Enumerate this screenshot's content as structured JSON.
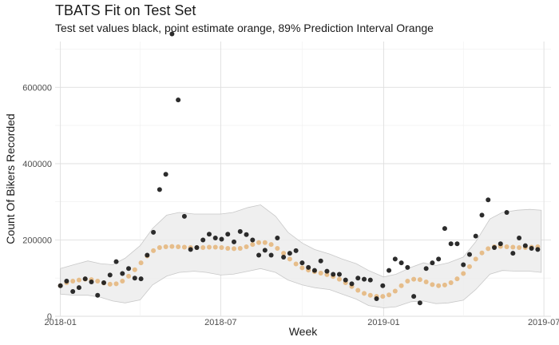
{
  "chart_data": {
    "type": "scatter",
    "title": "TBATS Fit on Test Set",
    "subtitle": "Test set values black, point estimate orange, 89% Prediction Interval Orange",
    "xlabel": "Week",
    "ylabel": "Count Of Bikers Recorded",
    "xlim": [
      "2017-12-26",
      "2019-07-09"
    ],
    "ylim": [
      0,
      720000
    ],
    "x_ticks": [
      {
        "date": "2018-01-01",
        "label": "2018-01"
      },
      {
        "date": "2018-07-01",
        "label": "2018-07"
      },
      {
        "date": "2019-01-01",
        "label": "2019-01"
      },
      {
        "date": "2019-07-01",
        "label": "2019-07"
      }
    ],
    "y_ticks": [
      {
        "value": 0,
        "label": "0"
      },
      {
        "value": 200000,
        "label": "200000"
      },
      {
        "value": 400000,
        "label": "400000"
      },
      {
        "value": 600000,
        "label": "600000"
      }
    ],
    "colors": {
      "observed": "#1a1a1a",
      "forecast": "#e6bd8a",
      "interval_fill": "#ececec",
      "interval_stroke": "#c8c8c8"
    },
    "series": [
      {
        "name": "Test set values",
        "x": [
          "2018-01-01",
          "2018-01-08",
          "2018-01-15",
          "2018-01-22",
          "2018-01-29",
          "2018-02-05",
          "2018-02-12",
          "2018-02-19",
          "2018-02-26",
          "2018-03-05",
          "2018-03-12",
          "2018-03-19",
          "2018-03-26",
          "2018-04-02",
          "2018-04-09",
          "2018-04-16",
          "2018-04-23",
          "2018-04-30",
          "2018-05-07",
          "2018-05-14",
          "2018-05-21",
          "2018-05-28",
          "2018-06-04",
          "2018-06-11",
          "2018-06-18",
          "2018-06-25",
          "2018-07-02",
          "2018-07-09",
          "2018-07-16",
          "2018-07-23",
          "2018-07-30",
          "2018-08-06",
          "2018-08-13",
          "2018-08-20",
          "2018-08-27",
          "2018-09-03",
          "2018-09-10",
          "2018-09-17",
          "2018-09-24",
          "2018-10-01",
          "2018-10-08",
          "2018-10-15",
          "2018-10-22",
          "2018-10-29",
          "2018-11-05",
          "2018-11-12",
          "2018-11-19",
          "2018-11-26",
          "2018-12-03",
          "2018-12-10",
          "2018-12-17",
          "2018-12-24",
          "2018-12-31",
          "2019-01-07",
          "2019-01-14",
          "2019-01-21",
          "2019-01-28",
          "2019-02-04",
          "2019-02-11",
          "2019-02-18",
          "2019-02-25",
          "2019-03-04",
          "2019-03-11",
          "2019-03-18",
          "2019-03-25",
          "2019-04-01",
          "2019-04-08",
          "2019-04-15",
          "2019-04-22",
          "2019-04-29",
          "2019-05-06",
          "2019-05-13",
          "2019-05-20",
          "2019-05-27",
          "2019-06-03",
          "2019-06-10",
          "2019-06-17",
          "2019-06-24"
        ],
        "values": [
          80000,
          92000,
          65000,
          75000,
          98000,
          90000,
          55000,
          88000,
          108000,
          143000,
          112000,
          125000,
          100000,
          98000,
          160000,
          220000,
          332000,
          372000,
          740000,
          567000,
          262000,
          175000,
          180000,
          200000,
          215000,
          205000,
          202000,
          215000,
          195000,
          222000,
          214000,
          200000,
          160000,
          173000,
          160000,
          205000,
          155000,
          165000,
          172000,
          140000,
          128000,
          120000,
          145000,
          118000,
          110000,
          110000,
          95000,
          85000,
          100000,
          97000,
          95000,
          46000,
          80000,
          120000,
          150000,
          140000,
          128000,
          52000,
          35000,
          125000,
          140000,
          150000,
          230000,
          190000,
          190000,
          135000,
          162000,
          210000,
          265000,
          305000,
          180000,
          190000,
          272000,
          165000,
          205000,
          185000,
          178000,
          175000
        ]
      },
      {
        "name": "Point estimate",
        "x": [
          "2018-01-01",
          "2018-01-08",
          "2018-01-15",
          "2018-01-22",
          "2018-01-29",
          "2018-02-05",
          "2018-02-12",
          "2018-02-19",
          "2018-02-26",
          "2018-03-05",
          "2018-03-12",
          "2018-03-19",
          "2018-03-26",
          "2018-04-02",
          "2018-04-09",
          "2018-04-16",
          "2018-04-23",
          "2018-04-30",
          "2018-05-07",
          "2018-05-14",
          "2018-05-21",
          "2018-05-28",
          "2018-06-04",
          "2018-06-11",
          "2018-06-18",
          "2018-06-25",
          "2018-07-02",
          "2018-07-09",
          "2018-07-16",
          "2018-07-23",
          "2018-07-30",
          "2018-08-06",
          "2018-08-13",
          "2018-08-20",
          "2018-08-27",
          "2018-09-03",
          "2018-09-10",
          "2018-09-17",
          "2018-09-24",
          "2018-10-01",
          "2018-10-08",
          "2018-10-15",
          "2018-10-22",
          "2018-10-29",
          "2018-11-05",
          "2018-11-12",
          "2018-11-19",
          "2018-11-26",
          "2018-12-03",
          "2018-12-10",
          "2018-12-17",
          "2018-12-24",
          "2018-12-31",
          "2019-01-07",
          "2019-01-14",
          "2019-01-21",
          "2019-01-28",
          "2019-02-04",
          "2019-02-11",
          "2019-02-18",
          "2019-02-25",
          "2019-03-04",
          "2019-03-11",
          "2019-03-18",
          "2019-03-25",
          "2019-04-01",
          "2019-04-08",
          "2019-04-15",
          "2019-04-22",
          "2019-04-29",
          "2019-05-06",
          "2019-05-13",
          "2019-05-20",
          "2019-05-27",
          "2019-06-03",
          "2019-06-10",
          "2019-06-17",
          "2019-06-24"
        ],
        "values": [
          80000,
          88000,
          92000,
          95000,
          97000,
          96000,
          92000,
          87000,
          84000,
          85000,
          92000,
          105000,
          122000,
          140000,
          158000,
          172000,
          180000,
          182000,
          183000,
          182000,
          181000,
          180000,
          180000,
          180000,
          181000,
          181000,
          180000,
          178000,
          177000,
          178000,
          182000,
          188000,
          193000,
          193000,
          188000,
          178000,
          165000,
          150000,
          137000,
          127000,
          121000,
          117000,
          113000,
          109000,
          104000,
          97000,
          88000,
          78000,
          68000,
          60000,
          55000,
          52000,
          52000,
          56000,
          66000,
          80000,
          92000,
          97000,
          96000,
          90000,
          83000,
          80000,
          82000,
          88000,
          98000,
          112000,
          130000,
          150000,
          166000,
          177000,
          182000,
          183000,
          182000,
          181000,
          180000,
          180000,
          181000,
          182000
        ]
      }
    ],
    "interval_89": {
      "x": [
        "2018-01-01",
        "2018-01-16",
        "2018-02-01",
        "2018-02-15",
        "2018-03-01",
        "2018-03-15",
        "2018-04-01",
        "2018-04-15",
        "2018-05-01",
        "2018-05-15",
        "2018-06-01",
        "2018-06-15",
        "2018-07-01",
        "2018-07-15",
        "2018-08-01",
        "2018-08-15",
        "2018-09-01",
        "2018-09-15",
        "2018-10-01",
        "2018-10-15",
        "2018-11-01",
        "2018-11-15",
        "2018-12-01",
        "2018-12-15",
        "2019-01-01",
        "2019-01-15",
        "2019-02-01",
        "2019-02-15",
        "2019-03-01",
        "2019-03-15",
        "2019-04-01",
        "2019-04-15",
        "2019-05-01",
        "2019-05-15",
        "2019-06-01",
        "2019-06-15",
        "2019-06-28"
      ],
      "upper": [
        125000,
        135000,
        145000,
        138000,
        135000,
        152000,
        185000,
        230000,
        265000,
        272000,
        268000,
        268000,
        268000,
        272000,
        285000,
        292000,
        262000,
        220000,
        192000,
        175000,
        163000,
        150000,
        138000,
        120000,
        103000,
        110000,
        128000,
        140000,
        133000,
        140000,
        155000,
        195000,
        255000,
        272000,
        278000,
        280000,
        278000
      ],
      "lower": [
        58000,
        55000,
        55000,
        50000,
        40000,
        35000,
        43000,
        82000,
        105000,
        115000,
        118000,
        115000,
        108000,
        110000,
        118000,
        125000,
        115000,
        95000,
        82000,
        75000,
        70000,
        58000,
        45000,
        28000,
        22000,
        25000,
        38000,
        40000,
        33000,
        35000,
        42000,
        70000,
        110000,
        120000,
        118000,
        118000,
        115000
      ]
    }
  }
}
